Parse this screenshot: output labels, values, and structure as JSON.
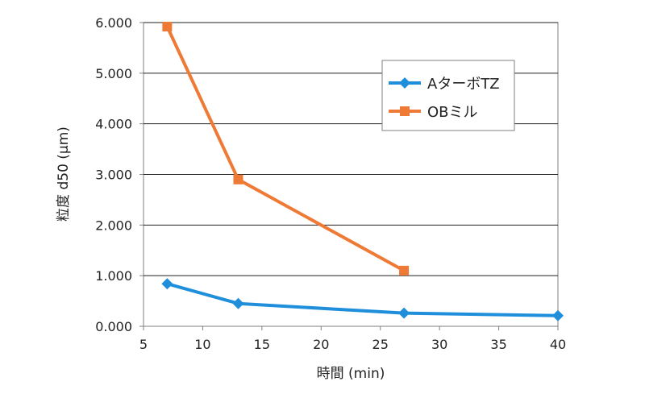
{
  "chart_data": {
    "type": "line",
    "xlabel": "時間 (min)",
    "ylabel": "粒度 d50 (μm)",
    "xlim": [
      5,
      40
    ],
    "ylim": [
      0,
      6
    ],
    "xticks": [
      "5",
      "10",
      "15",
      "20",
      "25",
      "30",
      "35",
      "40"
    ],
    "yticks": [
      "0.000",
      "1.000",
      "2.000",
      "3.000",
      "4.000",
      "5.000",
      "6.000"
    ],
    "grid": "horizontal",
    "legend": "top-right",
    "series": [
      {
        "name": "AターボTZ",
        "marker": "diamond",
        "color": "#1f8fdb",
        "x": [
          7,
          13,
          27,
          40
        ],
        "y": [
          0.84,
          0.45,
          0.26,
          0.21
        ]
      },
      {
        "name": "OBミル",
        "marker": "square",
        "color": "#ee7a35",
        "x": [
          7,
          13,
          27
        ],
        "y": [
          5.92,
          2.9,
          1.1
        ]
      }
    ]
  }
}
